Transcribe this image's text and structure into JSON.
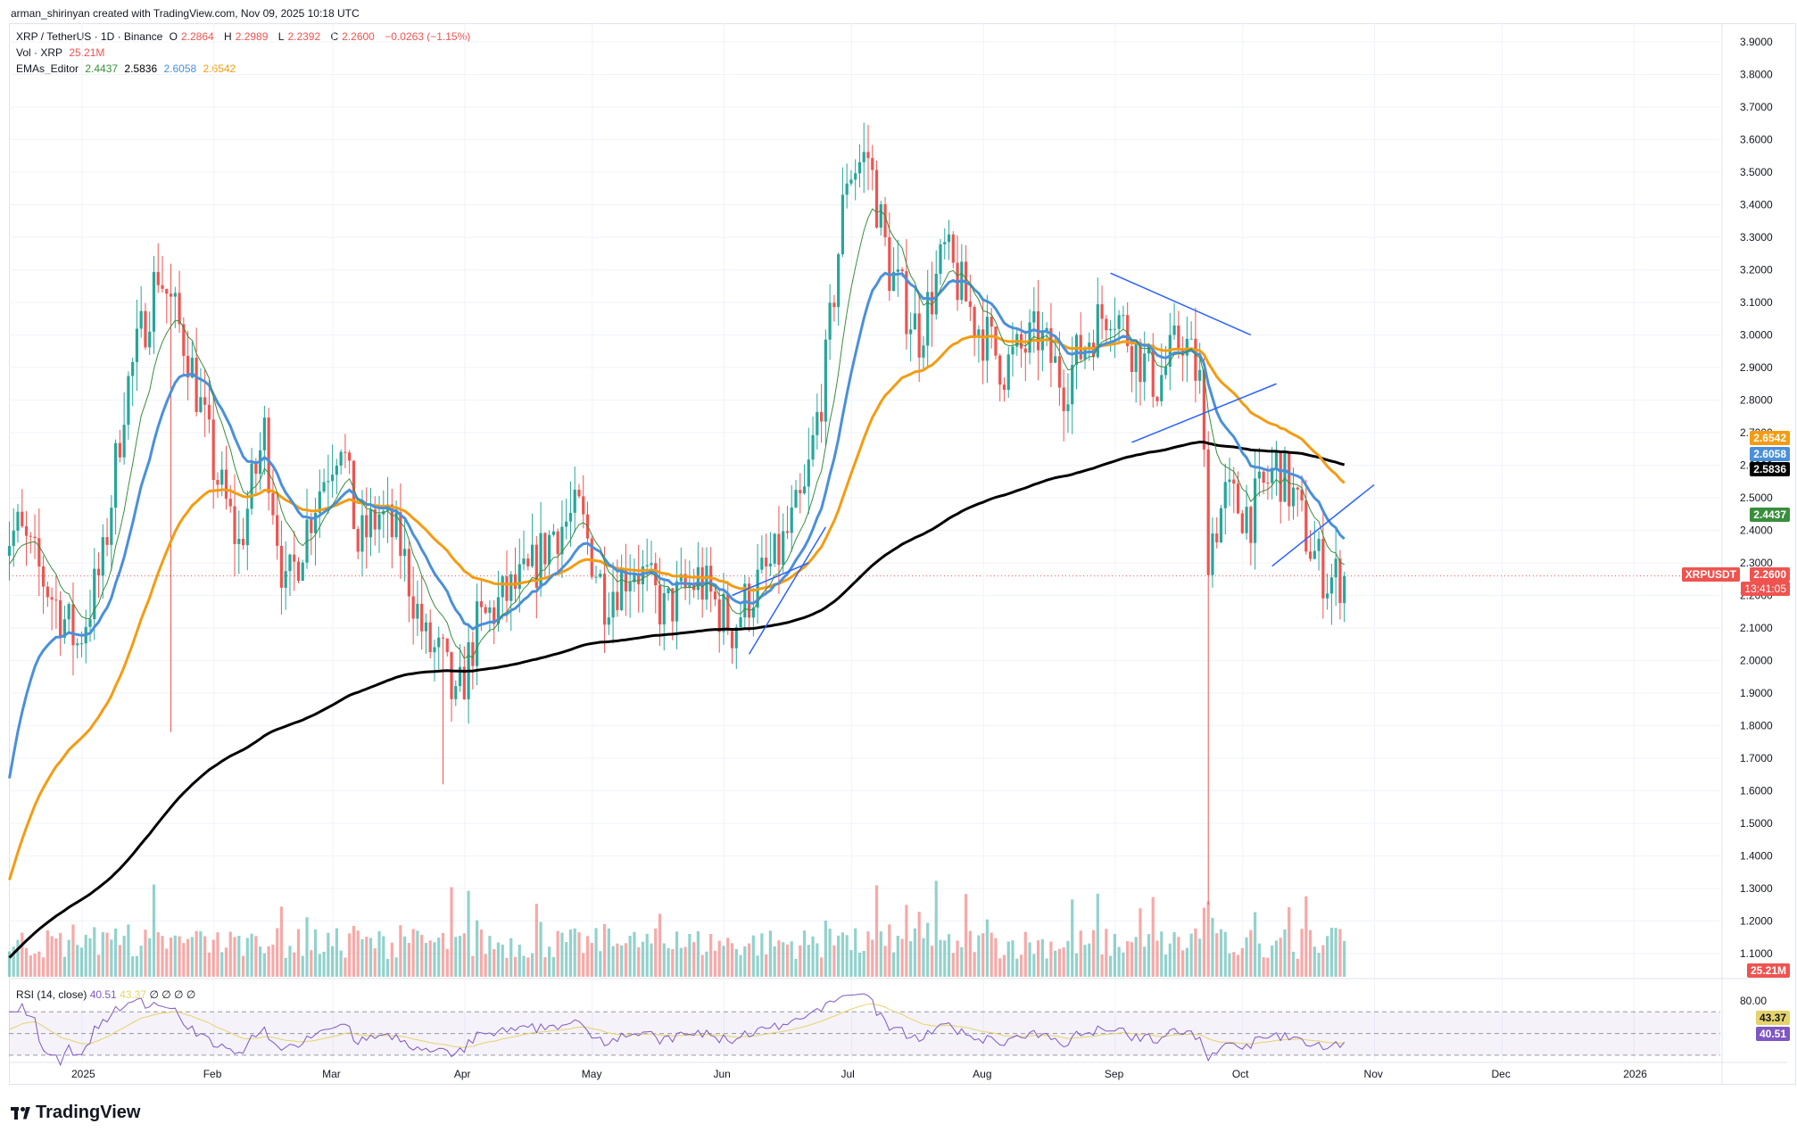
{
  "header": "arman_shirinyan created with TradingView.com, Nov 09, 2025 10:18 UTC",
  "symbol_line": {
    "symbol": "XRP / TetherUS · 1D · Binance",
    "o_label": "O",
    "o": "2.2864",
    "h_label": "H",
    "h": "2.2989",
    "l_label": "L",
    "l": "2.2392",
    "c_label": "C",
    "c": "2.2600",
    "change": "−0.0263 (−1.15%)"
  },
  "vol_line": {
    "label": "Vol · XRP",
    "value": "25.21M"
  },
  "ema_line": {
    "label": "EMAs_Editor",
    "v1": "2.4437",
    "v2": "2.5836",
    "v3": "2.6058",
    "v4": "2.6542"
  },
  "rsi_line": {
    "label": "RSI (14, close)",
    "v1": "40.51",
    "v2": "43.37",
    "rest": "∅ ∅ ∅ ∅"
  },
  "badges": {
    "ema50": "2.6542",
    "ema20": "2.6058",
    "ema200": "2.5836",
    "ema10": "2.4437",
    "ticker": "XRPUSDT",
    "price": "2.2600",
    "countdown": "13:41:05",
    "volume": "25.21M",
    "rsi_ma": "43.37",
    "rsi": "40.51"
  },
  "colors": {
    "up": "#26a69a",
    "down": "#ef5350",
    "ema10": "#388e3c",
    "ema20": "#4a90d9",
    "ema50": "#f39c12",
    "ema200": "#000000",
    "trendline": "#2962ff",
    "rsi": "#7e57c2",
    "rsi_ma": "#e5d36a"
  },
  "logo_text": "TradingView",
  "chart_data": {
    "type": "candlestick",
    "price_ticks": [
      "3.9000",
      "3.8000",
      "3.7000",
      "3.6000",
      "3.5000",
      "3.4000",
      "3.3000",
      "3.2000",
      "3.1000",
      "3.0000",
      "2.9000",
      "2.8000",
      "2.7000",
      "2.6000",
      "2.5000",
      "2.4000",
      "2.3000",
      "2.2000",
      "2.1000",
      "2.0000",
      "1.9000",
      "1.8000",
      "1.7000",
      "1.6000",
      "1.5000",
      "1.4000",
      "1.3000",
      "1.2000",
      "1.1000"
    ],
    "rsi_ticks": [
      "80.00"
    ],
    "x_labels": [
      "2025",
      "Feb",
      "Mar",
      "Apr",
      "May",
      "Jun",
      "Jul",
      "Aug",
      "Sep",
      "Oct",
      "Nov",
      "Dec",
      "2026"
    ],
    "last_price": 2.26,
    "ema_series": [
      {
        "name": "EMA 10",
        "last": 2.4437
      },
      {
        "name": "EMA 20",
        "last": 2.6058
      },
      {
        "name": "EMA 50",
        "last": 2.6542
      },
      {
        "name": "EMA 200",
        "last": 2.5836
      }
    ],
    "rsi_last": 40.51,
    "rsi_ma_last": 43.37,
    "volume_last": "25.21M"
  }
}
